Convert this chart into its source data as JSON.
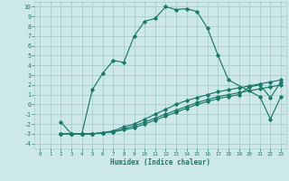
{
  "xlabel": "Humidex (Indice chaleur)",
  "background_color": "#cce8e8",
  "grid_color": "#aacccc",
  "line_color": "#1a7a6a",
  "xlim": [
    -0.5,
    23.5
  ],
  "ylim": [
    -4.5,
    10.5
  ],
  "xticks": [
    0,
    1,
    2,
    3,
    4,
    5,
    6,
    7,
    8,
    9,
    10,
    11,
    12,
    13,
    14,
    15,
    16,
    17,
    18,
    19,
    20,
    21,
    22,
    23
  ],
  "yticks": [
    -4,
    -3,
    -2,
    -1,
    0,
    1,
    2,
    3,
    4,
    5,
    6,
    7,
    8,
    9,
    10
  ],
  "curve1_x": [
    2,
    3,
    4,
    5,
    6,
    7,
    8,
    9,
    10,
    11,
    12,
    13,
    14,
    15,
    16,
    17,
    18,
    21,
    22,
    23
  ],
  "curve1_y": [
    -1.8,
    -3.0,
    -3.0,
    1.5,
    3.2,
    4.5,
    4.3,
    7.0,
    8.5,
    8.8,
    10.0,
    9.7,
    9.8,
    9.5,
    7.8,
    5.0,
    2.5,
    0.8,
    -1.5,
    0.8
  ],
  "curve2_x": [
    2,
    3,
    4,
    5,
    6,
    7,
    8,
    9,
    10,
    11,
    12,
    13,
    14,
    15,
    16,
    17,
    18,
    19,
    20,
    21,
    22,
    23
  ],
  "curve2_y": [
    -3.0,
    -3.0,
    -3.0,
    -3.0,
    -2.9,
    -2.7,
    -2.3,
    -2.0,
    -1.5,
    -1.0,
    -0.5,
    0.0,
    0.4,
    0.7,
    1.0,
    1.3,
    1.5,
    1.7,
    1.9,
    2.1,
    2.3,
    2.5
  ],
  "curve3_x": [
    2,
    3,
    4,
    5,
    6,
    7,
    8,
    9,
    10,
    11,
    12,
    13,
    14,
    15,
    16,
    17,
    18,
    19,
    20,
    21,
    22,
    23
  ],
  "curve3_y": [
    -3.0,
    -3.0,
    -3.0,
    -3.0,
    -2.9,
    -2.8,
    -2.5,
    -2.2,
    -1.8,
    -1.4,
    -1.0,
    -0.6,
    -0.2,
    0.2,
    0.5,
    0.8,
    1.0,
    1.2,
    1.4,
    1.6,
    1.8,
    2.0
  ],
  "curve4_x": [
    2,
    3,
    4,
    5,
    6,
    7,
    8,
    9,
    10,
    11,
    12,
    13,
    14,
    15,
    16,
    17,
    18,
    19,
    20,
    21,
    22,
    23
  ],
  "curve4_y": [
    -3.0,
    -3.0,
    -3.0,
    -3.0,
    -2.9,
    -2.8,
    -2.6,
    -2.4,
    -2.0,
    -1.6,
    -1.2,
    -0.8,
    -0.4,
    0.0,
    0.3,
    0.6,
    0.8,
    1.0,
    1.8,
    2.0,
    0.7,
    2.3
  ]
}
